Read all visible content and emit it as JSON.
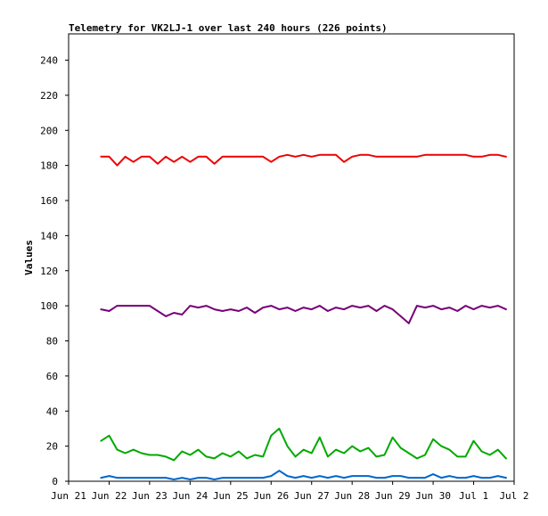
{
  "chart_data": {
    "type": "line",
    "title": "Telemetry for VK2LJ-1 over last 240 hours (226 points)",
    "xlabel": "",
    "ylabel": "Values",
    "xlim": [
      "Jun 21",
      "Jul 2"
    ],
    "ylim": [
      0,
      255
    ],
    "grid": false,
    "legend": "none",
    "x_ticks": [
      "Jun 21",
      "Jun 22",
      "Jun 23",
      "Jun 24",
      "Jun 25",
      "Jun 26",
      "Jun 27",
      "Jun 28",
      "Jun 29",
      "Jun 30",
      "Jul 1",
      "Jul 2"
    ],
    "y_ticks": [
      0,
      20,
      40,
      60,
      80,
      100,
      120,
      140,
      160,
      180,
      200,
      220,
      240
    ],
    "x": [
      "Jun 21.8",
      "Jun 22.0",
      "Jun 22.2",
      "Jun 22.4",
      "Jun 22.6",
      "Jun 22.8",
      "Jun 23.0",
      "Jun 23.2",
      "Jun 23.4",
      "Jun 23.6",
      "Jun 23.8",
      "Jun 24.0",
      "Jun 24.2",
      "Jun 24.4",
      "Jun 24.6",
      "Jun 24.8",
      "Jun 25.0",
      "Jun 25.2",
      "Jun 25.4",
      "Jun 25.6",
      "Jun 25.8",
      "Jun 26.0",
      "Jun 26.2",
      "Jun 26.4",
      "Jun 26.6",
      "Jun 26.8",
      "Jun 27.0",
      "Jun 27.2",
      "Jun 27.4",
      "Jun 27.6",
      "Jun 27.8",
      "Jun 28.0",
      "Jun 28.2",
      "Jun 28.4",
      "Jun 28.6",
      "Jun 28.8",
      "Jun 29.0",
      "Jun 29.2",
      "Jun 29.4",
      "Jun 29.6",
      "Jun 29.8",
      "Jun 30.0",
      "Jun 30.2",
      "Jun 30.4",
      "Jun 30.6",
      "Jun 30.8",
      "Jul 1.0",
      "Jul 1.2",
      "Jul 1.4",
      "Jul 1.6",
      "Jul 1.8"
    ],
    "series": [
      {
        "color": "#ee0000",
        "values": [
          185,
          185,
          180,
          185,
          182,
          185,
          185,
          181,
          185,
          182,
          185,
          182,
          185,
          185,
          181,
          185,
          185,
          185,
          185,
          185,
          185,
          182,
          185,
          186,
          185,
          186,
          185,
          186,
          186,
          186,
          182,
          185,
          186,
          186,
          185,
          185,
          185,
          185,
          185,
          185,
          186,
          186,
          186,
          186,
          186,
          186,
          185,
          185,
          186,
          186,
          185
        ]
      },
      {
        "color": "#770077",
        "values": [
          98,
          97,
          100,
          100,
          100,
          100,
          100,
          97,
          94,
          96,
          95,
          100,
          99,
          100,
          98,
          97,
          98,
          97,
          99,
          96,
          99,
          100,
          98,
          99,
          97,
          99,
          98,
          100,
          97,
          99,
          98,
          100,
          99,
          100,
          97,
          100,
          98,
          94,
          90,
          100,
          99,
          100,
          98,
          99,
          97,
          100,
          98,
          100,
          99,
          100,
          98
        ]
      },
      {
        "color": "#00aa00",
        "values": [
          23,
          26,
          18,
          16,
          18,
          16,
          15,
          15,
          14,
          12,
          17,
          15,
          18,
          14,
          13,
          16,
          14,
          17,
          13,
          15,
          14,
          26,
          30,
          20,
          14,
          18,
          16,
          25,
          14,
          18,
          16,
          20,
          17,
          19,
          14,
          15,
          25,
          19,
          16,
          13,
          15,
          24,
          20,
          18,
          14,
          14,
          23,
          17,
          15,
          18,
          13
        ]
      },
      {
        "color": "#0066cc",
        "values": [
          2,
          3,
          2,
          2,
          2,
          2,
          2,
          2,
          2,
          1,
          2,
          1,
          2,
          2,
          1,
          2,
          2,
          2,
          2,
          2,
          2,
          3,
          6,
          3,
          2,
          3,
          2,
          3,
          2,
          3,
          2,
          3,
          3,
          3,
          2,
          2,
          3,
          3,
          2,
          2,
          2,
          4,
          2,
          3,
          2,
          2,
          3,
          2,
          2,
          3,
          2
        ]
      }
    ]
  }
}
